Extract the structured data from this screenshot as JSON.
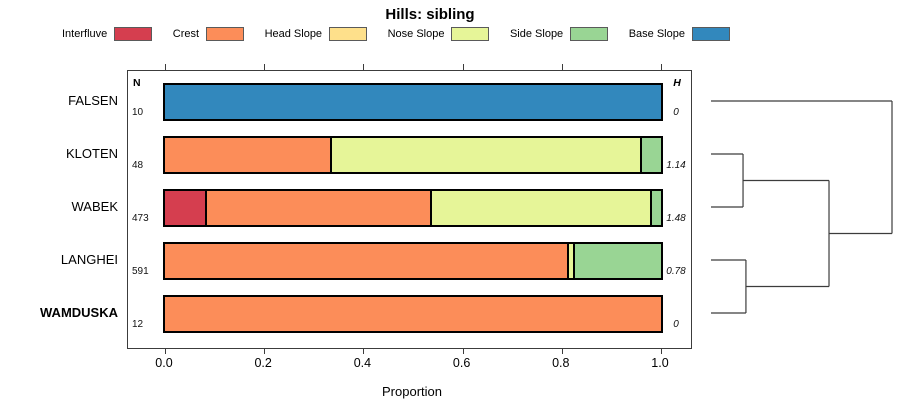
{
  "chart_data": {
    "type": "bar",
    "variant": "horizontal-stacked-proportion",
    "title": "Hills: sibling",
    "xlabel": "Proportion",
    "xlim": [
      0,
      1
    ],
    "xticks": [
      "0.0",
      "0.2",
      "0.4",
      "0.6",
      "0.8",
      "1.0"
    ],
    "grid": false,
    "legend_position": "top",
    "categories": [
      {
        "label": "Interfluve",
        "color": "#D53E4F"
      },
      {
        "label": "Crest",
        "color": "#FC8D59"
      },
      {
        "label": "Head Slope",
        "color": "#FEE08B"
      },
      {
        "label": "Nose Slope",
        "color": "#E6F598"
      },
      {
        "label": "Side Slope",
        "color": "#99D594"
      },
      {
        "label": "Base Slope",
        "color": "#3288BD"
      }
    ],
    "n_column_header": "N",
    "h_column_header": "H",
    "rows": [
      {
        "label": "FALSEN",
        "n": "10",
        "h": "0",
        "bold": false,
        "segments": [
          {
            "category": "Base Slope",
            "value": 1.0
          }
        ]
      },
      {
        "label": "KLOTEN",
        "n": "48",
        "h": "1.14",
        "bold": false,
        "segments": [
          {
            "category": "Crest",
            "value": 0.333
          },
          {
            "category": "Nose Slope",
            "value": 0.625
          },
          {
            "category": "Side Slope",
            "value": 0.042
          }
        ]
      },
      {
        "label": "WABEK",
        "n": "473",
        "h": "1.48",
        "bold": false,
        "segments": [
          {
            "category": "Interfluve",
            "value": 0.08
          },
          {
            "category": "Crest",
            "value": 0.455
          },
          {
            "category": "Nose Slope",
            "value": 0.442
          },
          {
            "category": "Side Slope",
            "value": 0.023
          }
        ]
      },
      {
        "label": "LANGHEI",
        "n": "591",
        "h": "0.78",
        "bold": false,
        "segments": [
          {
            "category": "Crest",
            "value": 0.81
          },
          {
            "category": "Nose Slope",
            "value": 0.012
          },
          {
            "category": "Side Slope",
            "value": 0.178
          }
        ]
      },
      {
        "label": "WAMDUSKA",
        "n": "12",
        "h": "0",
        "bold": true,
        "segments": [
          {
            "category": "Crest",
            "value": 1.0
          }
        ]
      }
    ],
    "dendrogram": {
      "orientation": "right",
      "leaf_order": [
        "FALSEN",
        "KLOTEN",
        "WABEK",
        "LANGHEI",
        "WAMDUSKA"
      ],
      "structure": "(FALSEN,((KLOTEN,WABEK),(LANGHEI,WAMDUSKA)))",
      "segments": [
        {
          "x1": 0,
          "y1": 0,
          "x2": 1,
          "y2": 0
        },
        {
          "x1": 0,
          "y1": 1,
          "x2": 0.177,
          "y2": 1
        },
        {
          "x1": 0,
          "y1": 2,
          "x2": 0.177,
          "y2": 2
        },
        {
          "x1": 0.177,
          "y1": 1,
          "x2": 0.177,
          "y2": 2
        },
        {
          "x1": 0.177,
          "y1": 1.5,
          "x2": 0.652,
          "y2": 1.5
        },
        {
          "x1": 0,
          "y1": 3,
          "x2": 0.193,
          "y2": 3
        },
        {
          "x1": 0,
          "y1": 4,
          "x2": 0.193,
          "y2": 4
        },
        {
          "x1": 0.193,
          "y1": 3,
          "x2": 0.193,
          "y2": 4
        },
        {
          "x1": 0.193,
          "y1": 3.5,
          "x2": 0.652,
          "y2": 3.5
        },
        {
          "x1": 0.652,
          "y1": 1.5,
          "x2": 0.652,
          "y2": 3.5
        },
        {
          "x1": 0.652,
          "y1": 2.5,
          "x2": 1,
          "y2": 2.5
        },
        {
          "x1": 1,
          "y1": 0,
          "x2": 1,
          "y2": 2.5
        }
      ]
    }
  }
}
